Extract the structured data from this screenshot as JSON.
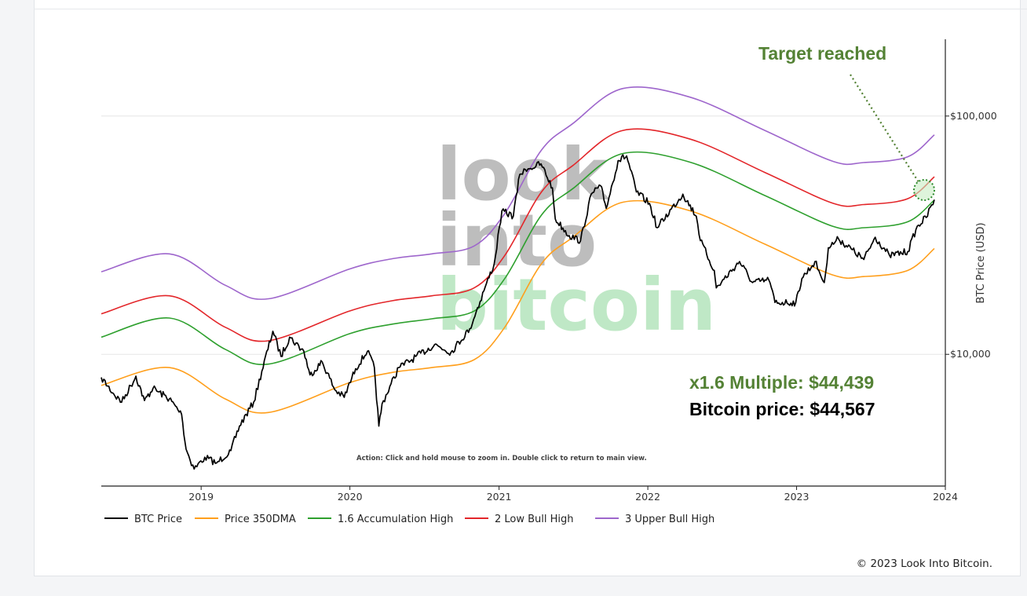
{
  "footer": "© 2023 Look Into Bitcoin.",
  "watermark": {
    "line1": "look",
    "line2": "into",
    "line3": "bitcoin",
    "color_gray": "#bdbdbd",
    "color_green": "#bfe8c6"
  },
  "annotations": {
    "target": "Target reached",
    "multiple": "x1.6 Multiple: $44,439",
    "price": "Bitcoin price: $44,567",
    "hint": "Action: Click and hold mouse to zoom in.  Double click to return to main view."
  },
  "chart_data": {
    "type": "line",
    "title": "",
    "xlabel": "",
    "ylabel": "BTC Price (USD)",
    "y_scale": "log",
    "ylim": [
      2800,
      210000
    ],
    "xlim": [
      "2018-05-01",
      "2024-01-01"
    ],
    "grid": true,
    "legend_position": "bottom",
    "x_ticks": [
      "2019",
      "2020",
      "2021",
      "2022",
      "2023",
      "2024"
    ],
    "y_ticks": [
      {
        "value": 10000,
        "label": "$10,000"
      },
      {
        "value": 100000,
        "label": "$100,000"
      }
    ],
    "colors": {
      "BTC Price": "#000000",
      "Price 350DMA": "#ff9f1c",
      "1.6 Accumulation High": "#2ea02e",
      "2 Low Bull High": "#e3262a",
      "3 Upper Bull High": "#9e66cc"
    },
    "series": [
      {
        "name": "BTC Price",
        "points": [
          [
            "2018-05-01",
            8000
          ],
          [
            "2018-06-01",
            6800
          ],
          [
            "2018-06-20",
            6300
          ],
          [
            "2018-07-25",
            8100
          ],
          [
            "2018-08-15",
            6400
          ],
          [
            "2018-09-05",
            7200
          ],
          [
            "2018-10-15",
            6500
          ],
          [
            "2018-11-14",
            5600
          ],
          [
            "2018-11-25",
            4000
          ],
          [
            "2018-12-15",
            3300
          ],
          [
            "2019-01-10",
            3700
          ],
          [
            "2019-02-08",
            3500
          ],
          [
            "2019-03-15",
            3950
          ],
          [
            "2019-04-05",
            5000
          ],
          [
            "2019-05-10",
            6300
          ],
          [
            "2019-05-30",
            8500
          ],
          [
            "2019-06-26",
            12500
          ],
          [
            "2019-07-16",
            9800
          ],
          [
            "2019-08-06",
            11800
          ],
          [
            "2019-09-10",
            10300
          ],
          [
            "2019-09-25",
            8200
          ],
          [
            "2019-10-25",
            9300
          ],
          [
            "2019-11-25",
            7100
          ],
          [
            "2019-12-18",
            6600
          ],
          [
            "2020-01-15",
            8700
          ],
          [
            "2020-02-13",
            10300
          ],
          [
            "2020-03-01",
            8800
          ],
          [
            "2020-03-12",
            5000
          ],
          [
            "2020-03-20",
            6200
          ],
          [
            "2020-04-30",
            8800
          ],
          [
            "2020-06-01",
            9500
          ],
          [
            "2020-07-27",
            11000
          ],
          [
            "2020-09-05",
            10200
          ],
          [
            "2020-10-21",
            12800
          ],
          [
            "2020-11-25",
            18500
          ],
          [
            "2020-12-20",
            24000
          ],
          [
            "2021-01-08",
            40000
          ],
          [
            "2021-02-05",
            38000
          ],
          [
            "2021-02-21",
            57000
          ],
          [
            "2021-03-13",
            60000
          ],
          [
            "2021-04-14",
            63000
          ],
          [
            "2021-05-12",
            50000
          ],
          [
            "2021-05-19",
            37000
          ],
          [
            "2021-06-22",
            31500
          ],
          [
            "2021-07-20",
            30000
          ],
          [
            "2021-08-15",
            47000
          ],
          [
            "2021-09-07",
            51000
          ],
          [
            "2021-09-21",
            41000
          ],
          [
            "2021-10-20",
            65000
          ],
          [
            "2021-11-10",
            68000
          ],
          [
            "2021-12-04",
            48000
          ],
          [
            "2022-01-05",
            43000
          ],
          [
            "2022-01-24",
            34000
          ],
          [
            "2022-03-28",
            47000
          ],
          [
            "2022-04-30",
            38000
          ],
          [
            "2022-05-10",
            30000
          ],
          [
            "2022-06-13",
            22500
          ],
          [
            "2022-06-18",
            19000
          ],
          [
            "2022-08-14",
            24500
          ],
          [
            "2022-09-15",
            20000
          ],
          [
            "2022-10-25",
            20500
          ],
          [
            "2022-11-09",
            16500
          ],
          [
            "2022-12-30",
            16500
          ],
          [
            "2023-01-14",
            20800
          ],
          [
            "2023-02-15",
            24500
          ],
          [
            "2023-03-10",
            20000
          ],
          [
            "2023-03-20",
            28000
          ],
          [
            "2023-04-14",
            30500
          ],
          [
            "2023-06-15",
            25000
          ],
          [
            "2023-07-13",
            31000
          ],
          [
            "2023-08-17",
            26000
          ],
          [
            "2023-10-01",
            27000
          ],
          [
            "2023-10-24",
            34500
          ],
          [
            "2023-11-15",
            37500
          ],
          [
            "2023-12-05",
            44567
          ]
        ]
      },
      {
        "name": "Price 350DMA",
        "points": [
          [
            "2018-05-01",
            7400
          ],
          [
            "2018-10-15",
            8800
          ],
          [
            "2019-03-01",
            6500
          ],
          [
            "2019-06-15",
            5700
          ],
          [
            "2019-12-31",
            7600
          ],
          [
            "2020-04-15",
            8400
          ],
          [
            "2020-07-20",
            8800
          ],
          [
            "2020-11-01",
            9500
          ],
          [
            "2021-01-15",
            13000
          ],
          [
            "2021-04-15",
            24000
          ],
          [
            "2021-07-01",
            31000
          ],
          [
            "2021-11-01",
            43500
          ],
          [
            "2022-04-15",
            40000
          ],
          [
            "2022-10-15",
            29000
          ],
          [
            "2023-04-01",
            21500
          ],
          [
            "2023-06-15",
            21200
          ],
          [
            "2023-10-01",
            22500
          ],
          [
            "2023-12-05",
            27800
          ]
        ]
      },
      {
        "name": "1.6 Accumulation High",
        "points": [
          [
            "2018-05-01",
            11800
          ],
          [
            "2018-10-15",
            14200
          ],
          [
            "2019-03-01",
            10500
          ],
          [
            "2019-06-15",
            9100
          ],
          [
            "2019-12-31",
            12200
          ],
          [
            "2020-04-15",
            13400
          ],
          [
            "2020-07-20",
            14100
          ],
          [
            "2020-11-01",
            15200
          ],
          [
            "2021-01-15",
            20800
          ],
          [
            "2021-04-15",
            38400
          ],
          [
            "2021-07-01",
            49600
          ],
          [
            "2021-11-01",
            69600
          ],
          [
            "2022-04-15",
            64000
          ],
          [
            "2022-10-15",
            46400
          ],
          [
            "2023-04-01",
            34400
          ],
          [
            "2023-06-15",
            34000
          ],
          [
            "2023-10-01",
            36000
          ],
          [
            "2023-12-05",
            44439
          ]
        ]
      },
      {
        "name": "2 Low Bull High",
        "points": [
          [
            "2018-05-01",
            14800
          ],
          [
            "2018-10-15",
            17600
          ],
          [
            "2019-03-01",
            13000
          ],
          [
            "2019-06-15",
            11400
          ],
          [
            "2019-12-31",
            15200
          ],
          [
            "2020-04-15",
            16800
          ],
          [
            "2020-07-20",
            17600
          ],
          [
            "2020-11-01",
            19000
          ],
          [
            "2021-01-15",
            26000
          ],
          [
            "2021-04-15",
            48000
          ],
          [
            "2021-07-01",
            62000
          ],
          [
            "2021-11-01",
            87000
          ],
          [
            "2022-04-15",
            80000
          ],
          [
            "2022-10-15",
            58000
          ],
          [
            "2023-04-01",
            43000
          ],
          [
            "2023-06-15",
            42500
          ],
          [
            "2023-10-01",
            45000
          ],
          [
            "2023-12-05",
            55600
          ]
        ]
      },
      {
        "name": "3 Upper Bull High",
        "points": [
          [
            "2018-05-01",
            22200
          ],
          [
            "2018-10-15",
            26400
          ],
          [
            "2019-03-01",
            19500
          ],
          [
            "2019-06-15",
            17100
          ],
          [
            "2019-12-31",
            22800
          ],
          [
            "2020-04-15",
            25200
          ],
          [
            "2020-07-20",
            26400
          ],
          [
            "2020-11-01",
            28500
          ],
          [
            "2021-01-15",
            39000
          ],
          [
            "2021-04-15",
            72000
          ],
          [
            "2021-07-01",
            93000
          ],
          [
            "2021-11-01",
            130500
          ],
          [
            "2022-04-15",
            120000
          ],
          [
            "2022-10-15",
            87000
          ],
          [
            "2023-04-01",
            64500
          ],
          [
            "2023-06-15",
            63800
          ],
          [
            "2023-10-01",
            67500
          ],
          [
            "2023-12-05",
            83400
          ]
        ]
      }
    ]
  }
}
